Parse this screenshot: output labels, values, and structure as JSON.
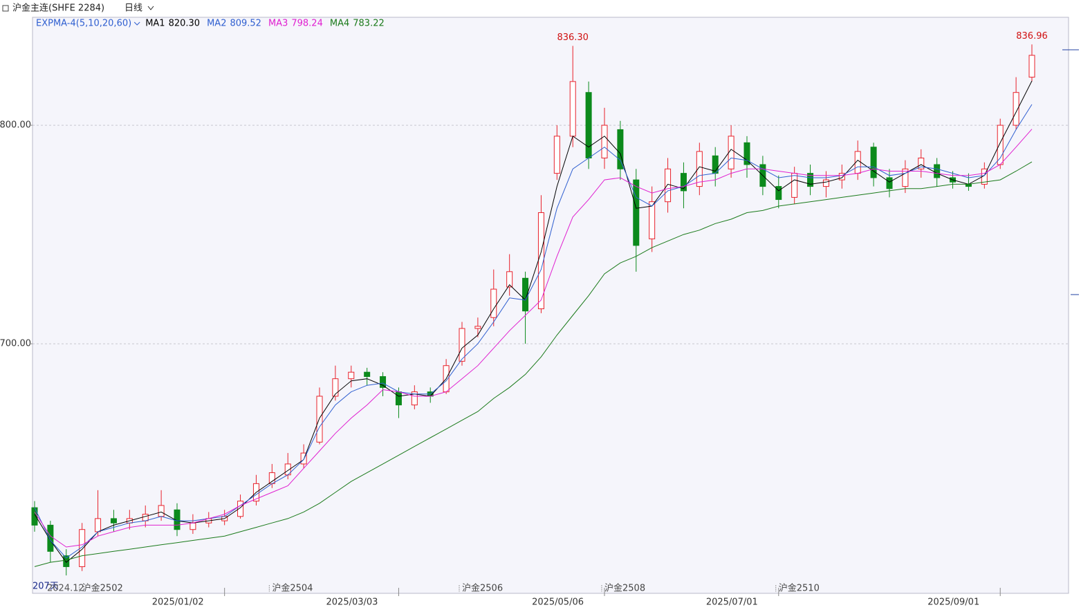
{
  "header": {
    "title": "沪金主连(SHFE 2284)",
    "period": "日线"
  },
  "chart_data": {
    "type": "candlestick",
    "indicator": "EXPMA-4(5,10,20,60)",
    "categories": [
      null,
      null,
      null,
      null,
      null,
      null,
      null,
      null,
      null,
      null,
      null,
      null,
      "2025/01/02",
      null,
      null,
      null,
      null,
      null,
      null,
      null,
      null,
      null,
      null,
      "2025/03/03",
      null,
      null,
      null,
      null,
      null,
      null,
      null,
      null,
      null,
      null,
      null,
      null,
      "2025/05/06",
      null,
      null,
      null,
      null,
      null,
      null,
      null,
      null,
      null,
      null,
      "2025/07/01",
      null,
      null,
      null,
      null,
      null,
      null,
      null,
      null,
      null,
      null,
      null,
      null,
      null,
      "2025/09/01",
      null,
      null
    ],
    "contracts": [
      null,
      null,
      null,
      "沪金2502",
      null,
      null,
      null,
      null,
      null,
      null,
      null,
      null,
      null,
      null,
      null,
      "沪金2504",
      null,
      null,
      null,
      null,
      null,
      null,
      null,
      null,
      null,
      null,
      null,
      "沪金2506",
      null,
      null,
      null,
      null,
      null,
      null,
      null,
      null,
      "沪金2508",
      null,
      null,
      null,
      null,
      null,
      null,
      null,
      null,
      null,
      null,
      "沪金2510",
      null,
      null,
      null,
      null,
      null,
      null,
      null,
      null,
      null,
      null,
      null,
      null,
      null,
      null,
      null,
      null
    ],
    "open": [
      625,
      617,
      603,
      598,
      614,
      620,
      618,
      619,
      621,
      624,
      615,
      618,
      619,
      621,
      628,
      636,
      640,
      645,
      655,
      676,
      684,
      687,
      685,
      678,
      672,
      678,
      678,
      692,
      707,
      712,
      726,
      730,
      716,
      778,
      795,
      815,
      785,
      798,
      775,
      748,
      765,
      778,
      772,
      786,
      780,
      792,
      782,
      772,
      767,
      778,
      772,
      775,
      778,
      790,
      776,
      772,
      780,
      782,
      776,
      773,
      773,
      782,
      800,
      822
    ],
    "high": [
      628,
      619,
      606,
      618,
      633,
      624,
      624,
      626,
      633,
      627,
      622,
      623,
      624,
      631,
      640,
      645,
      650,
      654,
      680,
      690,
      690,
      689,
      687,
      680,
      681,
      680,
      693,
      710,
      712,
      734,
      741,
      733,
      768,
      800,
      836.3,
      820,
      808,
      802,
      780,
      772,
      785,
      783,
      792,
      790,
      800,
      795,
      786,
      777,
      781,
      782,
      779,
      782,
      793,
      792,
      780,
      784,
      789,
      785,
      779,
      778,
      783,
      803,
      822,
      836.96
    ],
    "low": [
      614,
      600,
      594,
      596,
      612,
      614,
      615,
      616,
      619,
      612,
      613,
      616,
      617,
      620,
      626,
      634,
      638,
      643,
      654,
      674,
      680,
      681,
      676,
      666,
      670,
      673,
      677,
      690,
      703,
      708,
      722,
      700,
      714,
      775,
      790,
      780,
      780,
      775,
      733,
      742,
      760,
      762,
      768,
      772,
      776,
      776,
      768,
      762,
      764,
      768,
      767,
      771,
      775,
      772,
      767,
      769,
      776,
      772,
      771,
      770,
      771,
      780,
      798,
      820
    ],
    "close": [
      617,
      605,
      598,
      615,
      620,
      618,
      620,
      622,
      626,
      615,
      618,
      620,
      621,
      628,
      636,
      641,
      645,
      650,
      676,
      684,
      687,
      685,
      680,
      672,
      678,
      676,
      690,
      707,
      708,
      725,
      733,
      715,
      760,
      795,
      820,
      785,
      800,
      780,
      745,
      765,
      780,
      770,
      788,
      778,
      795,
      782,
      772,
      766,
      778,
      772,
      775,
      778,
      788,
      776,
      771,
      780,
      785,
      776,
      774,
      772,
      780,
      800,
      815,
      832
    ],
    "high_labels": [
      null,
      null,
      null,
      null,
      null,
      null,
      null,
      null,
      null,
      null,
      null,
      null,
      null,
      null,
      null,
      null,
      null,
      null,
      null,
      null,
      null,
      null,
      null,
      null,
      null,
      null,
      null,
      null,
      null,
      null,
      null,
      null,
      null,
      null,
      "836.30",
      null,
      null,
      null,
      null,
      null,
      null,
      null,
      null,
      null,
      null,
      null,
      null,
      null,
      null,
      null,
      null,
      null,
      null,
      null,
      null,
      null,
      null,
      null,
      null,
      null,
      null,
      null,
      null,
      "836.96"
    ],
    "series": [
      {
        "name": "MA1",
        "color": "#000000",
        "legend_value": "820.30",
        "values": [
          622,
          610,
          600,
          606,
          614,
          617,
          619,
          621,
          623,
          619,
          618,
          619,
          620,
          625,
          632,
          637,
          642,
          647,
          666,
          677,
          683,
          684,
          681,
          676,
          677,
          676,
          684,
          698,
          704,
          716,
          727,
          720,
          742,
          772,
          795,
          790,
          795,
          787,
          762,
          763,
          773,
          771,
          781,
          779,
          789,
          784,
          777,
          770,
          775,
          773,
          774,
          776,
          784,
          779,
          774,
          778,
          782,
          778,
          775,
          773,
          777,
          792,
          806,
          820.3
        ]
      },
      {
        "name": "MA2",
        "color": "#2f5fd0",
        "legend_value": "809.52",
        "values": [
          625,
          610,
          602,
          607,
          614,
          616,
          618,
          619,
          621,
          619,
          619,
          620,
          621,
          626,
          631,
          636,
          640,
          647,
          662,
          672,
          678,
          681,
          682,
          678,
          677,
          677,
          683,
          693,
          700,
          710,
          721,
          720,
          734,
          762,
          780,
          785,
          790,
          784,
          767,
          763,
          770,
          772,
          777,
          778,
          785,
          784,
          780,
          776,
          777,
          776,
          776,
          777,
          781,
          781,
          777,
          778,
          781,
          780,
          778,
          776,
          777,
          785,
          798,
          809.52
        ]
      },
      {
        "name": "MA3",
        "color": "#e020d0",
        "legend_value": "798.24",
        "values": [
          623,
          612,
          607,
          608,
          612,
          614,
          616,
          617,
          617,
          617,
          618,
          620,
          622,
          626,
          629,
          632,
          635,
          643,
          651,
          659,
          666,
          672,
          679,
          678,
          676,
          676,
          678,
          684,
          690,
          698,
          706,
          713,
          720,
          740,
          758,
          766,
          775,
          776,
          772,
          769,
          771,
          772,
          774,
          775,
          778,
          780,
          780,
          779,
          778,
          777,
          777,
          777,
          778,
          780,
          779,
          779,
          779,
          778,
          777,
          777,
          778,
          782,
          790,
          798.24
        ]
      },
      {
        "name": "MA4",
        "color": "#1a7a1a",
        "legend_value": "783.22",
        "values": [
          598,
          600,
          601,
          603,
          604,
          605,
          606,
          607,
          608,
          609,
          610,
          611,
          612,
          614,
          616,
          618,
          620,
          623,
          627,
          632,
          637,
          641,
          645,
          649,
          653,
          657,
          661,
          665,
          669,
          675,
          680,
          686,
          694,
          704,
          713,
          722,
          732,
          737,
          740,
          744,
          747,
          750,
          752,
          755,
          757,
          760,
          761,
          763,
          764,
          765,
          766,
          767,
          768,
          769,
          770,
          771,
          771,
          772,
          773,
          773,
          774,
          775,
          779,
          783.22
        ]
      }
    ],
    "ylim": [
      585.8,
      849.4
    ],
    "yticks": [
      {
        "value": 700,
        "label": "700.00"
      },
      {
        "value": 800,
        "label": "800.00"
      }
    ],
    "grid": true,
    "up_color": "#e8202a",
    "down_color": "#0c8a1c",
    "footer_labels": [
      "207天",
      "2024.12"
    ]
  }
}
